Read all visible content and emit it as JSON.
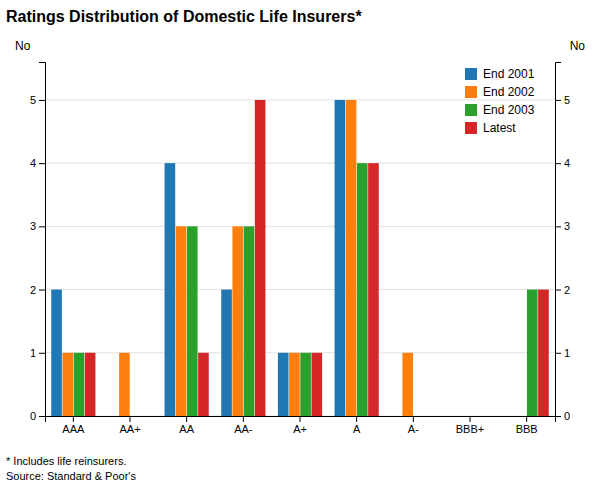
{
  "chart_data": {
    "type": "bar",
    "title": "Ratings Distribution of Domestic Life Insurers*",
    "categories": [
      "AAA",
      "AA+",
      "AA",
      "AA-",
      "A+",
      "A",
      "A-",
      "BBB+",
      "BBB"
    ],
    "series": [
      {
        "name": "End 2001",
        "values": [
          2,
          0,
          4,
          2,
          1,
          5,
          0,
          0,
          0
        ]
      },
      {
        "name": "End 2002",
        "values": [
          1,
          1,
          3,
          3,
          1,
          5,
          1,
          0,
          0
        ]
      },
      {
        "name": "End 2003",
        "values": [
          1,
          0,
          3,
          3,
          1,
          4,
          0,
          0,
          2
        ]
      },
      {
        "name": "Latest",
        "values": [
          1,
          0,
          1,
          5,
          1,
          4,
          0,
          0,
          2
        ]
      }
    ],
    "ylabel": "No",
    "y2label": "No",
    "ylim": [
      0,
      5.6
    ],
    "yticks": [
      0,
      1,
      2,
      3,
      4,
      5
    ],
    "y2lim": [
      0,
      5.6
    ],
    "y2ticks": [
      0,
      1,
      2,
      3,
      4,
      5
    ],
    "grid": true,
    "legend": "upper right",
    "annotations": [
      "* Includes life reinsurers.",
      "Source: Standard & Poor's"
    ]
  }
}
